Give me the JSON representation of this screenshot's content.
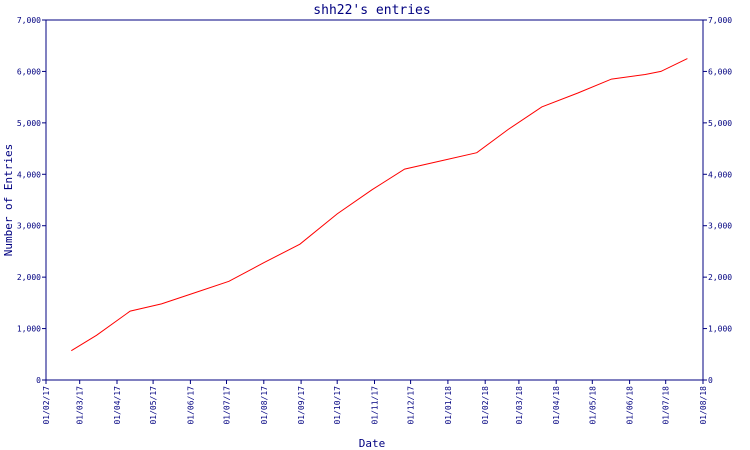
{
  "chart_data": {
    "type": "line",
    "title": "shh22's entries",
    "xlabel": "Date",
    "ylabel": "Number of Entries",
    "x_ticks": [
      "01/02/17",
      "01/03/17",
      "01/04/17",
      "01/05/17",
      "01/06/17",
      "01/07/17",
      "01/08/17",
      "01/09/17",
      "01/10/17",
      "01/11/17",
      "01/12/17",
      "01/01/18",
      "01/02/18",
      "01/03/18",
      "01/04/18",
      "01/05/18",
      "01/06/18",
      "01/07/18",
      "01/08/18"
    ],
    "y_ticks": [
      "0",
      "1,000",
      "2,000",
      "3,000",
      "4,000",
      "5,000",
      "6,000",
      "7,000"
    ],
    "ylim": [
      0,
      7000
    ],
    "xlim": [
      "2017-02-01",
      "2018-08-01"
    ],
    "grid": false,
    "right_axis": true,
    "series": [
      {
        "color": "#ff0000",
        "points": [
          {
            "x": "2017-02-22",
            "y": 570
          },
          {
            "x": "2017-03-15",
            "y": 870
          },
          {
            "x": "2017-04-12",
            "y": 1340
          },
          {
            "x": "2017-05-08",
            "y": 1480
          },
          {
            "x": "2017-06-05",
            "y": 1700
          },
          {
            "x": "2017-07-03",
            "y": 1920
          },
          {
            "x": "2017-08-01",
            "y": 2280
          },
          {
            "x": "2017-08-31",
            "y": 2640
          },
          {
            "x": "2017-10-01",
            "y": 3230
          },
          {
            "x": "2017-10-30",
            "y": 3700
          },
          {
            "x": "2017-11-26",
            "y": 4100
          },
          {
            "x": "2017-12-28",
            "y": 4270
          },
          {
            "x": "2018-01-25",
            "y": 4420
          },
          {
            "x": "2018-02-20",
            "y": 4870
          },
          {
            "x": "2018-03-20",
            "y": 5310
          },
          {
            "x": "2018-04-19",
            "y": 5580
          },
          {
            "x": "2018-05-17",
            "y": 5850
          },
          {
            "x": "2018-06-14",
            "y": 5940
          },
          {
            "x": "2018-06-27",
            "y": 6000
          },
          {
            "x": "2018-07-19",
            "y": 6250
          }
        ]
      }
    ]
  }
}
